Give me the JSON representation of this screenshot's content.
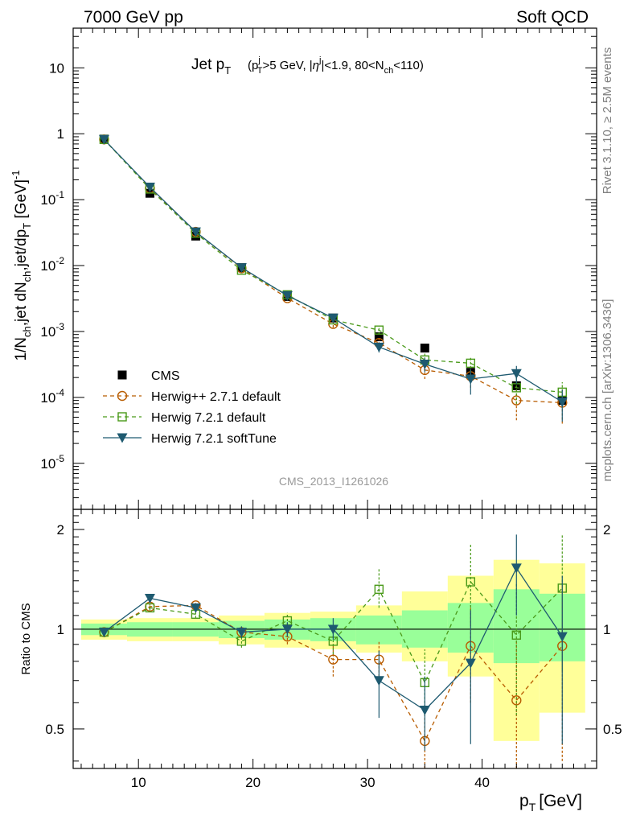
{
  "header": {
    "left": "7000 GeV pp",
    "right": "Soft QCD",
    "side_right_top": "Rivet 3.1.10, ≥ 2.5M events",
    "side_right_bottom": "mcplots.cern.ch [arXiv:1306.3436]"
  },
  "plot": {
    "title_main": "Jet p",
    "title_main_sub": "T",
    "title_cuts": "(p_T^j>5 GeV, |η^j|<1.9, 80<N_ch<110)",
    "watermark": "CMS_2013_I1261026",
    "ylabel_top": "1/N_ch,jet dN_ch,jet/dp_T [GeV]^-1",
    "ylabel_bottom": "Ratio to CMS",
    "xlabel": "p_T [GeV]",
    "xlabel_main": "p",
    "xlabel_sub": "T",
    "xlabel_unit": "[GeV]"
  },
  "legend": [
    {
      "label": "CMS",
      "color": "#000000",
      "marker": "square-filled",
      "line": "none"
    },
    {
      "label": "Herwig++ 2.7.1 default",
      "color": "#b85c00",
      "marker": "circle-open",
      "line": "dashed"
    },
    {
      "label": "Herwig 7.2.1 default",
      "color": "#4a9a1a",
      "marker": "square-open",
      "line": "dashed"
    },
    {
      "label": "Herwig 7.2.1 softTune",
      "color": "#1e5a70",
      "marker": "triangle-down-filled",
      "line": "solid"
    }
  ],
  "colors": {
    "band_outer": "#ffff99",
    "band_inner": "#99ff99",
    "cms": "#000000",
    "herwigpp": "#b85c00",
    "herwig7": "#4a9a1a",
    "softtune": "#1e5a70"
  },
  "chart_data": [
    {
      "type": "scatter",
      "panel": "main",
      "xlabel": "p_T [GeV]",
      "ylabel": "1/N_ch,jet dN_ch,jet/dp_T [GeV]^-1",
      "xlim": [
        4.3,
        50
      ],
      "ylim": [
        2e-06,
        40
      ],
      "yscale": "log",
      "xticks": [
        10,
        20,
        30,
        40
      ],
      "yticks": [
        {
          "v": 1e-05,
          "label": "10^-5"
        },
        {
          "v": 0.0001,
          "label": "10^-4"
        },
        {
          "v": 0.001,
          "label": "10^-3"
        },
        {
          "v": 0.01,
          "label": "10^-2"
        },
        {
          "v": 0.1,
          "label": "10^-1"
        },
        {
          "v": 1,
          "label": "1"
        },
        {
          "v": 10,
          "label": "10"
        }
      ],
      "x": [
        7,
        11,
        15,
        19,
        23,
        27,
        31,
        35,
        39,
        43,
        47
      ],
      "series": [
        {
          "name": "CMS",
          "key": "cms",
          "values": [
            0.83,
            0.125,
            0.028,
            0.0093,
            0.0034,
            0.0016,
            0.00083,
            0.00056,
            0.00024,
            0.00015,
            9e-05
          ]
        },
        {
          "name": "Herwig++ 2.7.1 default",
          "key": "herwigpp",
          "values": [
            0.82,
            0.148,
            0.0325,
            0.0091,
            0.0032,
            0.0013,
            0.00067,
            0.00026,
            0.00021,
            9e-05,
            8.3e-05
          ],
          "err_lo": [
            0.8,
            0.144,
            0.031,
            0.0087,
            0.003,
            0.00115,
            0.00055,
            0.00019,
            0.00014,
            4.5e-05,
            4e-05
          ],
          "err_hi": [
            0.84,
            0.152,
            0.034,
            0.0095,
            0.0034,
            0.00145,
            0.00079,
            0.00033,
            0.00028,
            0.00014,
            0.00013
          ]
        },
        {
          "name": "Herwig 7.2.1 default",
          "key": "herwig7",
          "values": [
            0.82,
            0.145,
            0.031,
            0.0085,
            0.0036,
            0.0015,
            0.00105,
            0.00037,
            0.00033,
            0.00014,
            0.00012
          ],
          "err_lo": [
            0.8,
            0.141,
            0.0295,
            0.0081,
            0.0034,
            0.0014,
            0.0009,
            0.00028,
            0.00024,
            8e-05,
            7e-05
          ],
          "err_hi": [
            0.84,
            0.149,
            0.0325,
            0.0089,
            0.0038,
            0.0016,
            0.0012,
            0.00046,
            0.00042,
            0.0002,
            0.00017
          ]
        },
        {
          "name": "Herwig 7.2.1 softTune",
          "key": "softtune",
          "values": [
            0.82,
            0.155,
            0.0325,
            0.0093,
            0.0035,
            0.0016,
            0.00058,
            0.00032,
            0.00019,
            0.00023,
            8.5e-05
          ],
          "err_lo": [
            0.8,
            0.151,
            0.031,
            0.0089,
            0.0033,
            0.0015,
            0.00048,
            0.00024,
            0.00011,
            0.00016,
            4.3e-05
          ],
          "err_hi": [
            0.84,
            0.159,
            0.034,
            0.0097,
            0.0037,
            0.0017,
            0.00068,
            0.0004,
            0.00027,
            0.0003,
            0.00013
          ]
        }
      ]
    },
    {
      "type": "scatter",
      "panel": "ratio",
      "ylabel": "Ratio to CMS",
      "xlim": [
        4.3,
        50
      ],
      "ylim": [
        0.38,
        2.3
      ],
      "yscale": "log",
      "yticks": [
        0.5,
        1,
        2
      ],
      "reference_line": 1,
      "x": [
        7,
        11,
        15,
        19,
        23,
        27,
        31,
        35,
        39,
        43,
        47
      ],
      "band_edges": [
        5,
        9,
        13,
        17,
        21,
        25,
        29,
        33,
        37,
        41,
        45,
        49
      ],
      "band_outer": {
        "lo": [
          0.93,
          0.92,
          0.92,
          0.9,
          0.88,
          0.87,
          0.85,
          0.8,
          0.72,
          0.46,
          0.56
        ],
        "hi": [
          1.07,
          1.08,
          1.08,
          1.1,
          1.12,
          1.13,
          1.18,
          1.3,
          1.45,
          1.62,
          1.58
        ]
      },
      "band_inner": {
        "lo": [
          0.96,
          0.95,
          0.95,
          0.94,
          0.93,
          0.92,
          0.9,
          0.88,
          0.85,
          0.79,
          0.8
        ],
        "hi": [
          1.04,
          1.05,
          1.05,
          1.06,
          1.07,
          1.08,
          1.1,
          1.14,
          1.2,
          1.32,
          1.28
        ]
      },
      "series": [
        {
          "name": "Herwig++ 2.7.1 default",
          "key": "herwigpp",
          "values": [
            0.98,
            1.17,
            1.18,
            0.98,
            0.95,
            0.81,
            0.81,
            0.46,
            0.89,
            0.61,
            0.89
          ],
          "err_lo": [
            0.96,
            1.15,
            1.16,
            0.94,
            0.9,
            0.72,
            0.7,
            0.33,
            0.6,
            0.3,
            0.4
          ],
          "err_hi": [
            1.0,
            1.19,
            1.2,
            1.02,
            1.0,
            0.9,
            0.92,
            0.59,
            1.18,
            0.92,
            1.38
          ]
        },
        {
          "name": "Herwig 7.2.1 default",
          "key": "herwig7",
          "values": [
            0.98,
            1.16,
            1.11,
            0.92,
            1.06,
            0.92,
            1.32,
            0.69,
            1.39,
            0.96,
            1.33
          ],
          "err_lo": [
            0.96,
            1.14,
            1.08,
            0.88,
            1.0,
            0.84,
            1.16,
            0.55,
            1.04,
            0.55,
            0.75
          ],
          "err_hi": [
            1.0,
            1.18,
            1.14,
            0.96,
            1.12,
            1.0,
            1.52,
            0.87,
            1.8,
            1.38,
            1.92
          ]
        },
        {
          "name": "Herwig 7.2.1 softTune",
          "key": "softtune",
          "values": [
            0.98,
            1.24,
            1.16,
            0.98,
            1.0,
            1.0,
            0.7,
            0.57,
            0.79,
            1.53,
            0.95
          ],
          "err_lo": [
            0.96,
            1.22,
            1.13,
            0.94,
            0.95,
            0.93,
            0.54,
            0.43,
            0.45,
            1.1,
            0.45
          ],
          "err_hi": [
            1.0,
            1.26,
            1.19,
            1.02,
            1.05,
            1.08,
            0.86,
            0.72,
            1.14,
            1.93,
            1.45
          ]
        }
      ]
    }
  ]
}
